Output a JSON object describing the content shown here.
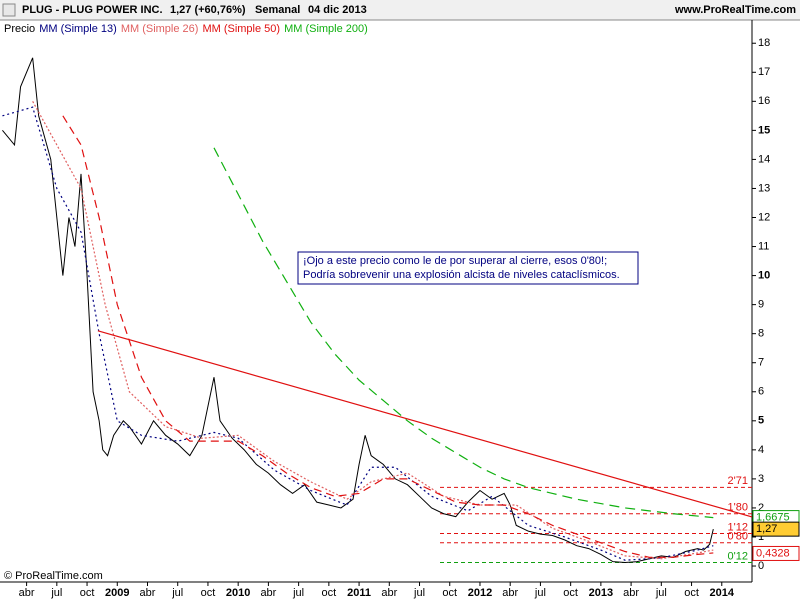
{
  "header": {
    "symbol": "PLUG - PLUG POWER INC.",
    "quote": "1,27 (+60,76%)",
    "period": "Semanal",
    "date": "04 dic 2013",
    "site": "www.ProRealTime.com"
  },
  "footer": "© ProRealTime.com",
  "chart_data": {
    "type": "line",
    "xlim": [
      2008.03,
      2014.25
    ],
    "ylim": [
      -0.55,
      18.8
    ],
    "yticks": [
      0,
      1,
      2,
      3,
      4,
      5,
      6,
      7,
      8,
      9,
      10,
      11,
      12,
      13,
      14,
      15,
      16,
      17,
      18
    ],
    "xticks": [
      {
        "value": 2008.25,
        "label": "abr"
      },
      {
        "value": 2008.5,
        "label": "jul"
      },
      {
        "value": 2008.75,
        "label": "oct"
      },
      {
        "value": 2009,
        "label": "2009"
      },
      {
        "value": 2009.25,
        "label": "abr"
      },
      {
        "value": 2009.5,
        "label": "jul"
      },
      {
        "value": 2009.75,
        "label": "oct"
      },
      {
        "value": 2010,
        "label": "2010"
      },
      {
        "value": 2010.25,
        "label": "abr"
      },
      {
        "value": 2010.5,
        "label": "jul"
      },
      {
        "value": 2010.75,
        "label": "oct"
      },
      {
        "value": 2011,
        "label": "2011"
      },
      {
        "value": 2011.25,
        "label": "abr"
      },
      {
        "value": 2011.5,
        "label": "jul"
      },
      {
        "value": 2011.75,
        "label": "oct"
      },
      {
        "value": 2012,
        "label": "2012"
      },
      {
        "value": 2012.25,
        "label": "abr"
      },
      {
        "value": 2012.5,
        "label": "jul"
      },
      {
        "value": 2012.75,
        "label": "oct"
      },
      {
        "value": 2013,
        "label": "2013"
      },
      {
        "value": 2013.25,
        "label": "abr"
      },
      {
        "value": 2013.5,
        "label": "jul"
      },
      {
        "value": 2013.75,
        "label": "oct"
      },
      {
        "value": 2014,
        "label": "2014"
      }
    ],
    "series": [
      {
        "name": "Precio",
        "color": "#000000",
        "dash": "none",
        "x": [
          2008.05,
          2008.15,
          2008.2,
          2008.3,
          2008.35,
          2008.45,
          2008.5,
          2008.55,
          2008.6,
          2008.65,
          2008.7,
          2008.75,
          2008.8,
          2008.85,
          2008.88,
          2008.92,
          2008.97,
          2009.05,
          2009.1,
          2009.2,
          2009.3,
          2009.4,
          2009.5,
          2009.6,
          2009.7,
          2009.8,
          2009.85,
          2009.95,
          2010.05,
          2010.15,
          2010.25,
          2010.35,
          2010.45,
          2010.55,
          2010.65,
          2010.75,
          2010.85,
          2010.95,
          2011.0,
          2011.05,
          2011.1,
          2011.2,
          2011.3,
          2011.4,
          2011.5,
          2011.6,
          2011.7,
          2011.8,
          2011.9,
          2012.0,
          2012.1,
          2012.2,
          2012.25,
          2012.3,
          2012.4,
          2012.5,
          2012.6,
          2012.7,
          2012.8,
          2012.9,
          2013.0,
          2013.1,
          2013.2,
          2013.3,
          2013.4,
          2013.5,
          2013.6,
          2013.7,
          2013.8,
          2013.85,
          2013.9,
          2013.93
        ],
        "values": [
          15,
          14.5,
          16.5,
          17.5,
          15.5,
          14,
          12,
          10,
          12,
          11,
          13.5,
          10,
          6,
          5,
          4,
          3.8,
          4.5,
          5,
          4.8,
          4.2,
          5,
          4.5,
          4.2,
          3.8,
          4.5,
          6.5,
          5,
          4.4,
          4,
          3.5,
          3.2,
          2.8,
          2.5,
          2.8,
          2.2,
          2.1,
          2,
          2.3,
          3.5,
          4.5,
          3.8,
          3.5,
          3,
          2.8,
          2.4,
          2,
          1.8,
          1.7,
          2.2,
          2.6,
          2.3,
          2.5,
          2.1,
          1.4,
          1.2,
          1.1,
          1.05,
          0.9,
          0.7,
          0.6,
          0.4,
          0.15,
          0.12,
          0.15,
          0.25,
          0.35,
          0.3,
          0.5,
          0.6,
          0.55,
          0.75,
          1.27
        ]
      },
      {
        "name": "MM (Simple 13)",
        "color": "#000080",
        "dash": "2,3",
        "x": [
          2008.05,
          2008.3,
          2008.5,
          2008.7,
          2008.85,
          2009.0,
          2009.2,
          2009.5,
          2009.8,
          2010.0,
          2010.3,
          2010.6,
          2010.9,
          2011.1,
          2011.3,
          2011.6,
          2011.9,
          2012.1,
          2012.4,
          2012.7,
          2013.0,
          2013.2,
          2013.5,
          2013.8,
          2013.93
        ],
        "values": [
          15.5,
          15.8,
          13,
          11.5,
          8,
          5,
          4.5,
          4.3,
          4.6,
          4.4,
          3.3,
          2.6,
          2.1,
          3.4,
          3.4,
          2.4,
          1.9,
          2.4,
          1.4,
          1.0,
          0.55,
          0.2,
          0.28,
          0.55,
          0.7
        ]
      },
      {
        "name": "MM (Simple 26)",
        "color": "#e06060",
        "dash": "2,2",
        "x": [
          2008.3,
          2008.5,
          2008.7,
          2008.9,
          2009.1,
          2009.4,
          2009.7,
          2010.0,
          2010.3,
          2010.6,
          2010.9,
          2011.1,
          2011.4,
          2011.7,
          2012.0,
          2012.3,
          2012.6,
          2012.9,
          2013.2,
          2013.5,
          2013.8,
          2013.93
        ],
        "values": [
          16,
          14.5,
          13,
          9,
          6,
          4.8,
          4.4,
          4.5,
          3.6,
          2.9,
          2.3,
          2.9,
          3.2,
          2.4,
          2.1,
          2.1,
          1.3,
          0.85,
          0.35,
          0.25,
          0.45,
          0.55
        ]
      },
      {
        "name": "MM (Simple 50)",
        "color": "#e01010",
        "dash": "8,5",
        "x": [
          2008.55,
          2008.7,
          2008.85,
          2009.0,
          2009.2,
          2009.4,
          2009.6,
          2009.8,
          2010.0,
          2010.2,
          2010.4,
          2010.6,
          2010.8,
          2011.0,
          2011.2,
          2011.4,
          2011.6,
          2011.8,
          2012.0,
          2012.2,
          2012.4,
          2012.6,
          2012.8,
          2013.0,
          2013.2,
          2013.4,
          2013.6,
          2013.8,
          2013.93
        ],
        "values": [
          15.5,
          14.5,
          12,
          9,
          6.5,
          5,
          4.3,
          4.3,
          4.3,
          3.8,
          3.2,
          2.7,
          2.4,
          2.5,
          3,
          3,
          2.6,
          2.2,
          2.1,
          2.1,
          1.8,
          1.4,
          1.1,
          0.8,
          0.5,
          0.3,
          0.3,
          0.4,
          0.45
        ]
      },
      {
        "name": "MM (Simple 200)",
        "color": "#10b010",
        "dash": "10,6",
        "x": [
          2009.8,
          2010.0,
          2010.2,
          2010.4,
          2010.6,
          2010.8,
          2011.0,
          2011.2,
          2011.4,
          2011.6,
          2011.8,
          2012.0,
          2012.2,
          2012.4,
          2012.6,
          2012.8,
          2013.0,
          2013.2,
          2013.4,
          2013.6,
          2013.8,
          2013.93
        ],
        "values": [
          14.4,
          12.8,
          11.2,
          9.8,
          8.4,
          7.3,
          6.4,
          5.7,
          5,
          4.4,
          3.9,
          3.4,
          3,
          2.7,
          2.5,
          2.3,
          2.15,
          2,
          1.9,
          1.8,
          1.72,
          1.6675
        ]
      }
    ],
    "trendline": {
      "color": "#e01010",
      "x": [
        2008.84,
        2014.25
      ],
      "values": [
        8.1,
        1.69
      ]
    },
    "levels": [
      {
        "value": 2.71,
        "label": "2'71",
        "color": "#e01010"
      },
      {
        "value": 1.8,
        "label": "1'80",
        "color": "#e01010"
      },
      {
        "value": 1.12,
        "label": "1'12",
        "color": "#e01010"
      },
      {
        "value": 0.8,
        "label": "0'80",
        "color": "#e01010"
      },
      {
        "value": 0.12,
        "label": "0'12",
        "color": "#10a010"
      }
    ],
    "markers": [
      {
        "value": 1.6675,
        "label": "1,6675",
        "color": "#10a010",
        "bg": "#ffffff"
      },
      {
        "value": 1.27,
        "label": "1,27",
        "color": "#000000",
        "bg": "#ffcc33"
      },
      {
        "value": 0.4328,
        "label": "0,4328",
        "color": "#e01010",
        "bg": "#ffffff"
      }
    ],
    "annotation": [
      "¡Ojo a este precio como le de por superar al cierre, esos 0'80!;",
      "Podría sobrevenir una explosión alcista de niveles cataclísmicos."
    ]
  }
}
